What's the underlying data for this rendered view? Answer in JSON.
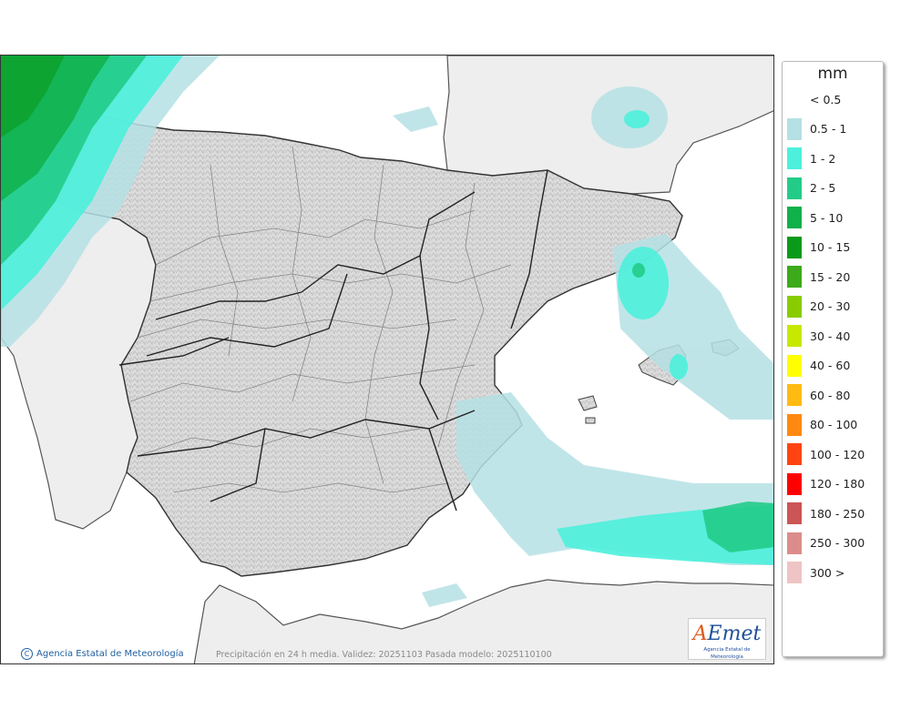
{
  "map": {
    "copyright": "Agencia Estatal de Meteorología",
    "caption": "Precipitación en 24 h media. Validez: 20251103 Pasada modelo: 2025110100",
    "logo_text": "AEmet",
    "logo_subtitle": "Agencia Estatal de Meteorología"
  },
  "legend": {
    "unit": "mm",
    "items": [
      {
        "label": "< 0.5",
        "color": "#ffffff"
      },
      {
        "label": "0.5 - 1",
        "color": "#b5e0e4"
      },
      {
        "label": "1 - 2",
        "color": "#4df0dc"
      },
      {
        "label": "2 - 5",
        "color": "#22cc88"
      },
      {
        "label": "5 - 10",
        "color": "#10b04a"
      },
      {
        "label": "10 - 15",
        "color": "#0a9a1a"
      },
      {
        "label": "15 - 20",
        "color": "#3caa1a"
      },
      {
        "label": "20 - 30",
        "color": "#88cc00"
      },
      {
        "label": "30 - 40",
        "color": "#c8e800"
      },
      {
        "label": "40 - 60",
        "color": "#ffff00"
      },
      {
        "label": "60 - 80",
        "color": "#ffbb11"
      },
      {
        "label": "80 - 100",
        "color": "#ff8811"
      },
      {
        "label": "100 - 120",
        "color": "#ff4411"
      },
      {
        "label": "120 - 180",
        "color": "#ff0000"
      },
      {
        "label": "180 - 250",
        "color": "#cc5555"
      },
      {
        "label": "250 - 300",
        "color": "#dd8c8c"
      },
      {
        "label": "300 >",
        "color": "#eec4c4"
      }
    ]
  }
}
